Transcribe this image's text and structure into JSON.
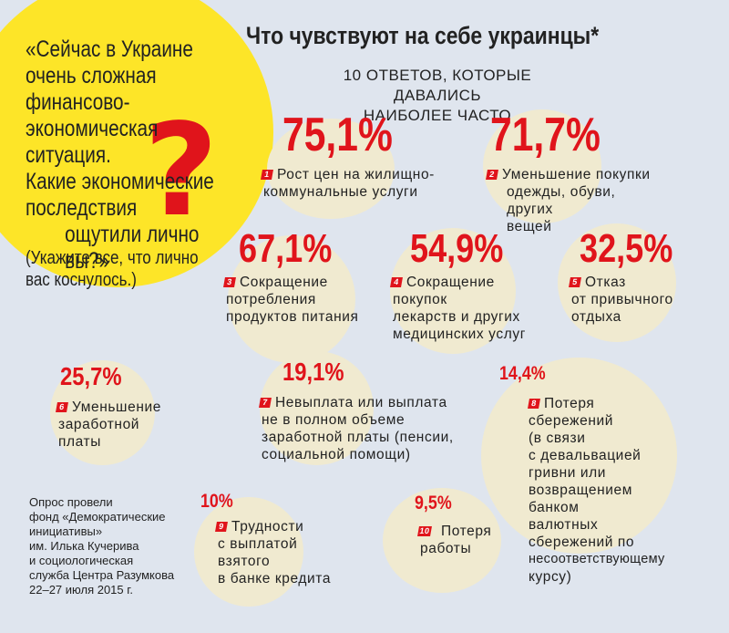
{
  "question": {
    "lines": [
      "«Сейчас в Украине",
      "очень сложная",
      "финансово-экономическая",
      "ситуация.",
      "Какие экономические",
      "последствия",
      "ощутили лично",
      "вы?»"
    ],
    "mark": "?"
  },
  "instruction": {
    "lines": [
      "(Укажите все, что лично",
      "вас коснулось.)"
    ]
  },
  "header": {
    "title": "Что чувствуют на себе украинцы*",
    "subtitle_lines": [
      "10 ОТВЕТОВ, КОТОРЫЕ ДАВАЛИСЬ",
      "НАИБОЛЕЕ ЧАСТО"
    ]
  },
  "answers": [
    {
      "num": "1",
      "pct": "75,1%",
      "lines": [
        "Рост цен на жилищно-",
        "коммунальные услуги"
      ]
    },
    {
      "num": "2",
      "pct": "71,7%",
      "lines": [
        "Уменьшение покупки",
        "одежды, обуви, других",
        "вещей"
      ]
    },
    {
      "num": "3",
      "pct": "67,1%",
      "lines": [
        "Сокращение",
        "потребления",
        "продуктов питания"
      ]
    },
    {
      "num": "4",
      "pct": "54,9%",
      "lines": [
        "Сокращение",
        "покупок",
        "лекарств и других",
        "медицинских услуг"
      ]
    },
    {
      "num": "5",
      "pct": "32,5%",
      "lines": [
        "Отказ",
        "от привычного",
        "отдыха"
      ]
    },
    {
      "num": "6",
      "pct": "25,7%",
      "lines": [
        "Уменьшение",
        "заработной",
        "платы"
      ]
    },
    {
      "num": "7",
      "pct": "19,1%",
      "lines": [
        "Невыплата или выплата",
        "не в полном объеме",
        "заработной платы (пенсии,",
        "социальной помощи)"
      ]
    },
    {
      "num": "8",
      "pct": "14,4%",
      "lines": [
        "Потеря",
        "сбережений",
        "(в связи",
        "с девальвацией",
        "гривни или",
        "возвращением",
        "банком",
        "валютных",
        "сбережений по",
        "несоответствующему",
        "курсу)"
      ]
    },
    {
      "num": "9",
      "pct": "10%",
      "lines": [
        "Трудности",
        "с выплатой",
        "взятого",
        "в банке кредита"
      ]
    },
    {
      "num": "10",
      "pct": "9,5%",
      "lines": [
        "Потеря",
        "работы"
      ]
    }
  ],
  "source": {
    "lines": [
      "Опрос провели",
      "фонд «Демократические",
      "инициативы»",
      "им. Илька Кучерива",
      "и социологическая",
      "служба Центра Разумкова",
      "22–27 июля 2015 г."
    ]
  },
  "colors": {
    "accent": "#e0141b",
    "yellow": "#fde528",
    "circle": "#f0ead0",
    "background": "#dfe5ee"
  }
}
